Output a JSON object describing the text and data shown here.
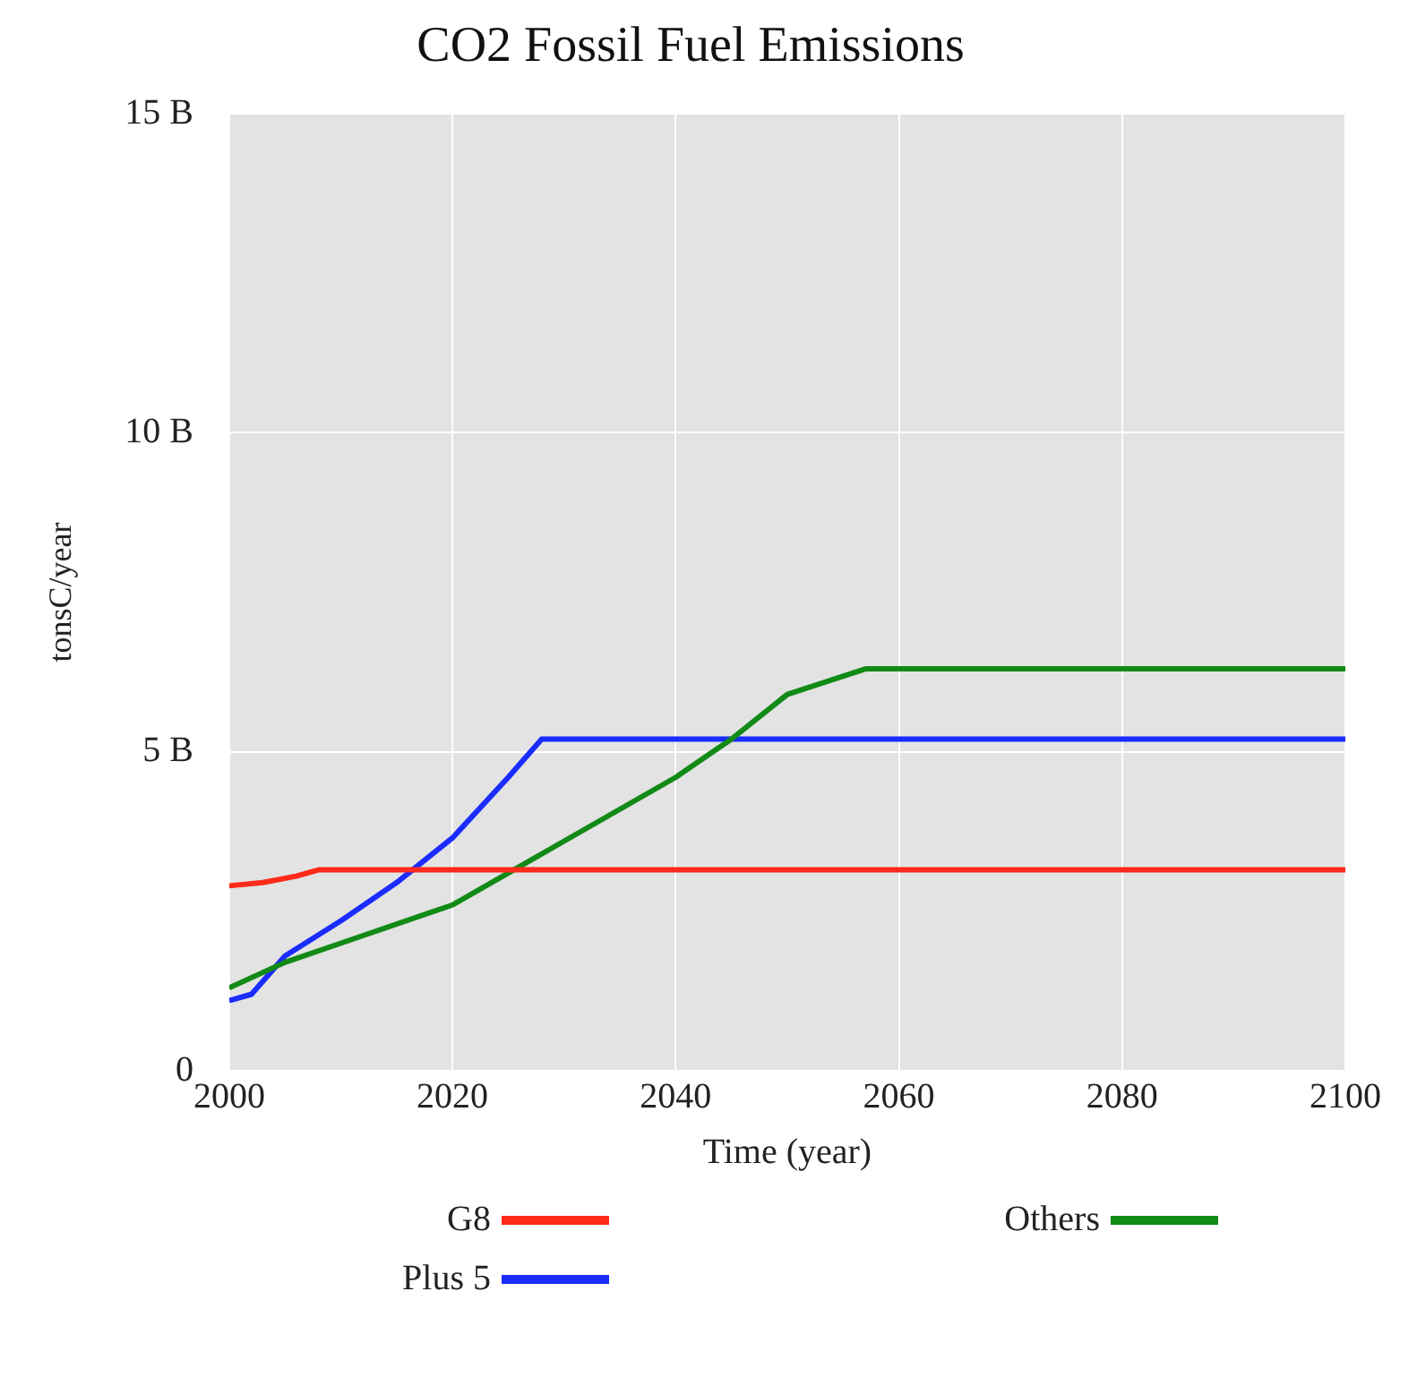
{
  "chart_data": {
    "type": "line",
    "title": "CO2 Fossil Fuel Emissions",
    "xlabel": "Time (year)",
    "ylabel": "tonsC/year",
    "xlim": [
      2000,
      2100
    ],
    "xticks": [
      2000,
      2020,
      2040,
      2060,
      2080,
      2100
    ],
    "ylim": [
      0,
      15
    ],
    "yticks": [
      {
        "value": 0,
        "label": "0"
      },
      {
        "value": 5,
        "label": "5 B"
      },
      {
        "value": 10,
        "label": "10 B"
      },
      {
        "value": 15,
        "label": "15 B"
      }
    ],
    "grid": true,
    "legend": "bottom",
    "marker": "none",
    "line_style": "solid",
    "series": [
      {
        "name": "G8",
        "color": "#ff2a1a",
        "x": [
          2000,
          2003,
          2006,
          2008,
          2100
        ],
        "values": [
          2.9,
          2.95,
          3.05,
          3.15,
          3.15
        ]
      },
      {
        "name": "Others",
        "color": "#128a16",
        "x": [
          2000,
          2005,
          2010,
          2020,
          2025,
          2030,
          2040,
          2045,
          2050,
          2057,
          2100
        ],
        "values": [
          1.3,
          1.7,
          2.0,
          2.6,
          3.1,
          3.6,
          4.6,
          5.2,
          5.9,
          6.3,
          6.3
        ]
      },
      {
        "name": "Plus 5",
        "color": "#1a2cff",
        "x": [
          2000,
          2002,
          2005,
          2010,
          2015,
          2020,
          2025,
          2028,
          2100
        ],
        "values": [
          1.1,
          1.2,
          1.8,
          2.35,
          2.95,
          3.65,
          4.6,
          5.2,
          5.2
        ]
      }
    ]
  }
}
